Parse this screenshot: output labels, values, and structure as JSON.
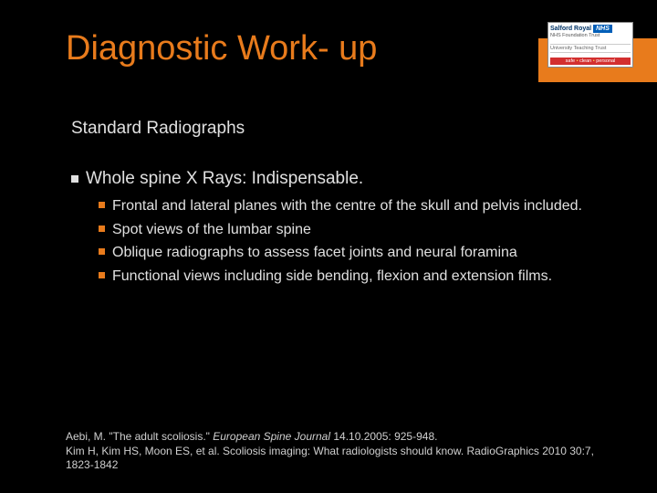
{
  "accent_color": "#e87b1c",
  "background_color": "#000000",
  "text_color": "#e0e0e0",
  "logo": {
    "org": "Salford Royal",
    "badge": "NHS",
    "trust": "NHS Foundation Trust",
    "mid": "University Teaching Trust",
    "tag1": "safe",
    "tag2": "clean",
    "tag3": "personal"
  },
  "title": "Diagnostic Work- up",
  "subtitle": "Standard Radiographs",
  "main_bullet": "Whole spine X Rays: Indispensable.",
  "sub_bullets": [
    "Frontal and lateral planes with the centre of the skull and pelvis included.",
    "Spot views of the lumbar spine",
    "Oblique radiographs to assess facet joints and neural foramina",
    "Functional views including side bending, flexion and extension films."
  ],
  "refs": {
    "line1a": "Aebi, M. \"The adult scoliosis.\" ",
    "line1b_italic": "European Spine Journal",
    "line1c": " 14.10.2005: 925-948.",
    "line2": "Kim H, Kim HS, Moon ES, et al. Scoliosis imaging: What radiologists should know. RadioGraphics 2010 30:7, 1823-1842"
  }
}
